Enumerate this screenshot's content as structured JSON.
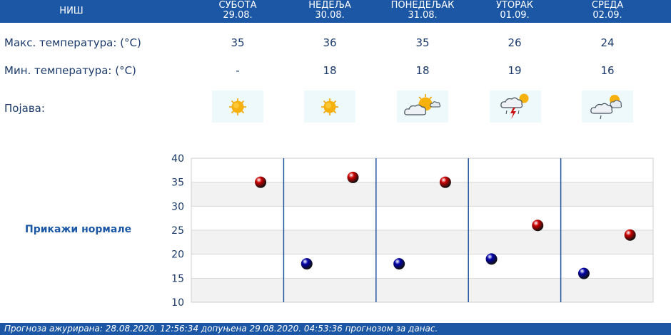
{
  "header": {
    "city": "НИШ",
    "days": [
      {
        "name": "СУБОТА",
        "date": "29.08."
      },
      {
        "name": "НЕДЕЉА",
        "date": "30.08."
      },
      {
        "name": "ПОНЕДЕЉАК",
        "date": "31.08."
      },
      {
        "name": "УТОРАК",
        "date": "01.09."
      },
      {
        "name": "СРЕДА",
        "date": "02.09."
      }
    ]
  },
  "rows": {
    "max_label": "Макс. температура: (°C)",
    "min_label": "Мин. температура: (°C)",
    "phenomenon_label": "Појава:",
    "max_values": [
      "35",
      "36",
      "35",
      "26",
      "24"
    ],
    "min_values": [
      "-",
      "18",
      "18",
      "19",
      "16"
    ],
    "icons": [
      "sun-icon",
      "sun-icon",
      "partly-cloudy-icon",
      "thunderstorm-icon",
      "cloudy-rain-icon"
    ]
  },
  "normals_link": "Прикажи нормале",
  "footer": "Прогноза ажурирана:  28.08.2020.  12:56:34 допуњена 29.08.2020.  04:53:36 прогнозом за данас.",
  "chart_data": {
    "type": "scatter",
    "categories": [
      "СУБОТА",
      "НЕДЕЉА",
      "ПОНЕДЕЉАК",
      "УТОРАК",
      "СРЕДА"
    ],
    "series": [
      {
        "values": [
          35,
          36,
          35,
          26,
          24
        ],
        "color": "#cc0000"
      },
      {
        "values": [
          null,
          18,
          18,
          19,
          16
        ],
        "color": "#0000aa"
      }
    ],
    "ylim": [
      10,
      40
    ],
    "yticks": [
      10,
      15,
      20,
      25,
      30,
      35,
      40
    ],
    "grid": true
  }
}
